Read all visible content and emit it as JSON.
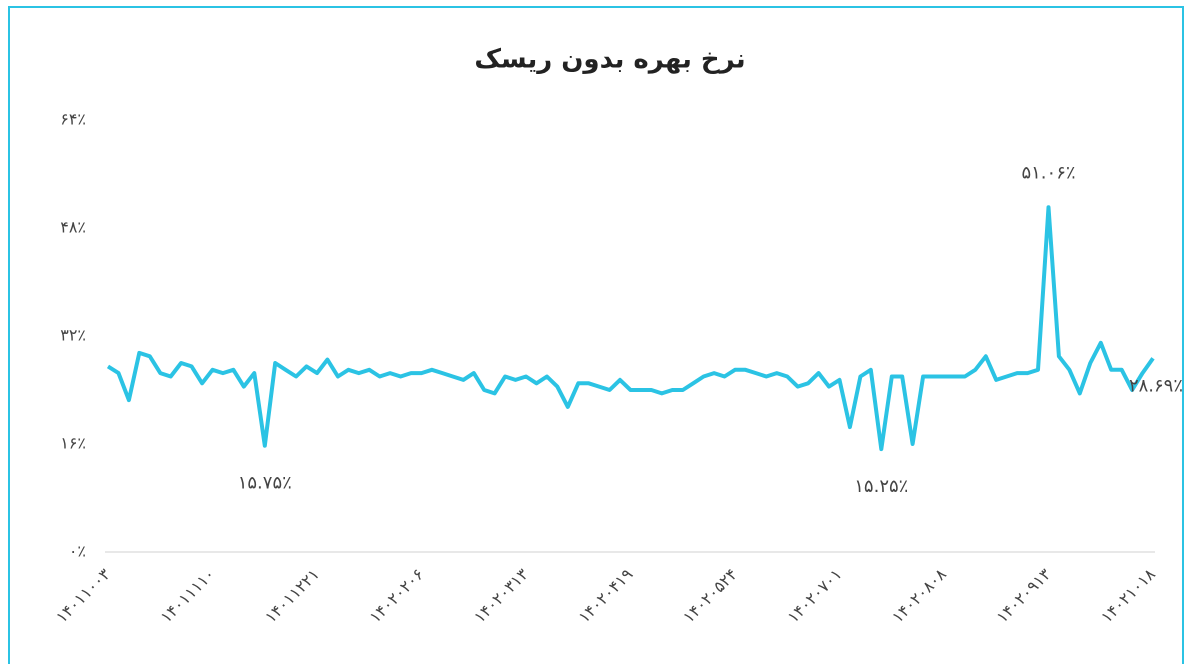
{
  "chart_data": {
    "type": "line",
    "title": "نرخ بهره بدون ریسک",
    "categories": [
      "۱۴۰۱۱۰۰۳",
      null,
      null,
      null,
      null,
      null,
      null,
      null,
      null,
      null,
      "۱۴۰۱۱۱۱۰",
      null,
      null,
      null,
      null,
      null,
      null,
      null,
      null,
      null,
      "۱۴۰۱۱۲۲۱",
      null,
      null,
      null,
      null,
      null,
      null,
      null,
      null,
      null,
      "۱۴۰۲۰۲۰۶",
      null,
      null,
      null,
      null,
      null,
      null,
      null,
      null,
      null,
      "۱۴۰۲۰۳۱۳",
      null,
      null,
      null,
      null,
      null,
      null,
      null,
      null,
      null,
      "۱۴۰۲۰۴۱۹",
      null,
      null,
      null,
      null,
      null,
      null,
      null,
      null,
      null,
      "۱۴۰۲۰۵۲۴",
      null,
      null,
      null,
      null,
      null,
      null,
      null,
      null,
      null,
      "۱۴۰۲۰۷۰۱",
      null,
      null,
      null,
      null,
      null,
      null,
      null,
      null,
      null,
      "۱۴۰۲۰۸۰۸",
      null,
      null,
      null,
      null,
      null,
      null,
      null,
      null,
      null,
      "۱۴۰۲۰۹۱۳",
      null,
      null,
      null,
      null,
      null,
      null,
      null,
      null,
      null,
      "۱۴۰۲۱۰۱۸"
    ],
    "values": [
      27.5,
      26.5,
      22.5,
      29.5,
      29,
      26.5,
      26,
      28,
      27.5,
      25,
      27,
      26.5,
      27,
      24.5,
      26.5,
      15.75,
      28,
      27,
      26,
      27.5,
      26.5,
      28.5,
      26,
      27,
      26.5,
      27,
      26,
      26.5,
      26,
      26.5,
      26.5,
      27,
      26.5,
      26,
      25.5,
      26.5,
      24,
      23.5,
      26,
      25.5,
      26,
      25,
      26,
      24.5,
      21.5,
      25,
      25,
      24.5,
      24,
      25.5,
      24,
      24,
      24,
      23.5,
      24,
      24,
      25,
      26,
      26.5,
      26,
      27,
      27,
      26.5,
      26,
      26.5,
      26,
      24.5,
      25,
      26.5,
      24.5,
      25.5,
      18.5,
      26,
      27,
      15.25,
      26,
      26,
      16,
      26,
      26,
      26,
      26,
      26,
      27,
      29,
      25.5,
      26,
      26.5,
      26.5,
      27,
      51.06,
      29,
      27,
      23.5,
      28,
      31,
      27,
      27,
      24,
      26.5,
      28.69
    ],
    "value_labels": [
      null,
      null,
      null,
      null,
      null,
      null,
      null,
      null,
      null,
      null,
      null,
      null,
      null,
      null,
      null,
      "۱۵.۷۵٪",
      null,
      null,
      null,
      null,
      null,
      null,
      null,
      null,
      null,
      null,
      null,
      null,
      null,
      null,
      null,
      null,
      null,
      null,
      null,
      null,
      null,
      null,
      null,
      null,
      null,
      null,
      null,
      null,
      null,
      null,
      null,
      null,
      null,
      null,
      null,
      null,
      null,
      null,
      null,
      null,
      null,
      null,
      null,
      null,
      null,
      null,
      null,
      null,
      null,
      null,
      null,
      null,
      null,
      null,
      null,
      null,
      null,
      null,
      "۱۵.۲۵٪",
      null,
      null,
      null,
      null,
      null,
      null,
      null,
      null,
      null,
      null,
      null,
      null,
      null,
      null,
      null,
      "۵۱.۰۶٪",
      null,
      null,
      null,
      null,
      null,
      null,
      null,
      null,
      null,
      "۲۸.۶۹٪"
    ],
    "color": "#2bc3e4",
    "ylim": [
      0,
      64
    ],
    "yticks": [
      {
        "value": 0,
        "label": "۰٪"
      },
      {
        "value": 16,
        "label": "۱۶٪"
      },
      {
        "value": 32,
        "label": "۳۲٪"
      },
      {
        "value": 48,
        "label": "۴۸٪"
      },
      {
        "value": 64,
        "label": "۶۴٪"
      }
    ]
  }
}
